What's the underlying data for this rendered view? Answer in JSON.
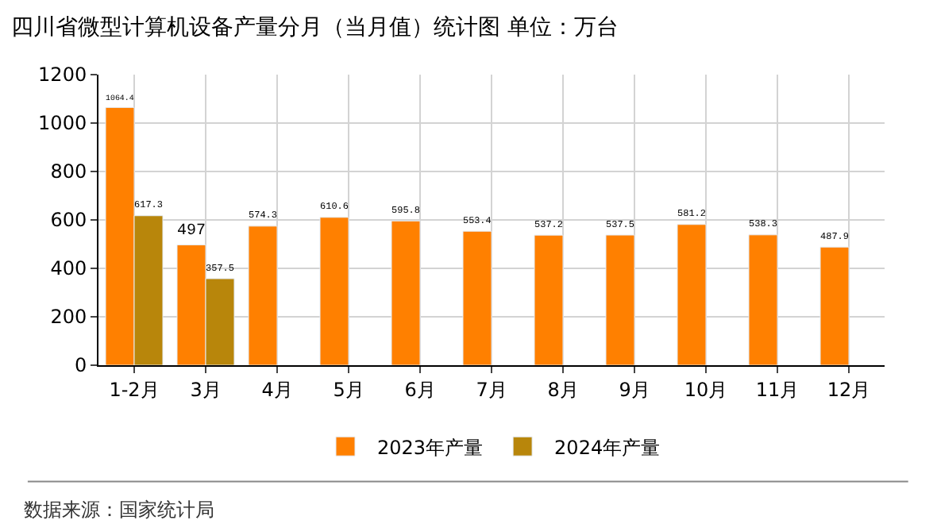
{
  "chart_data": {
    "type": "bar",
    "title": "四川省微型计算机设备产量分月（当月值）统计图 单位：万台",
    "categories": [
      "1-2月",
      "3月",
      "4月",
      "5月",
      "6月",
      "7月",
      "8月",
      "9月",
      "10月",
      "11月",
      "12月"
    ],
    "series": [
      {
        "name": "2023年产量",
        "color": "#ff8000",
        "values": [
          1064.4,
          497,
          574.3,
          610.6,
          595.8,
          553.4,
          537.2,
          537.5,
          581.2,
          538.3,
          487.9
        ]
      },
      {
        "name": "2024年产量",
        "color": "#b8860b",
        "values": [
          617.3,
          357.5,
          null,
          null,
          null,
          null,
          null,
          null,
          null,
          null,
          null
        ]
      }
    ],
    "ylim": [
      0,
      1200
    ],
    "yticks": [
      0,
      200,
      400,
      600,
      800,
      1000,
      1200
    ],
    "grid": true,
    "legend": "bottom",
    "data_labels": true,
    "annotations": [
      "数据来源：国家统计局"
    ]
  }
}
